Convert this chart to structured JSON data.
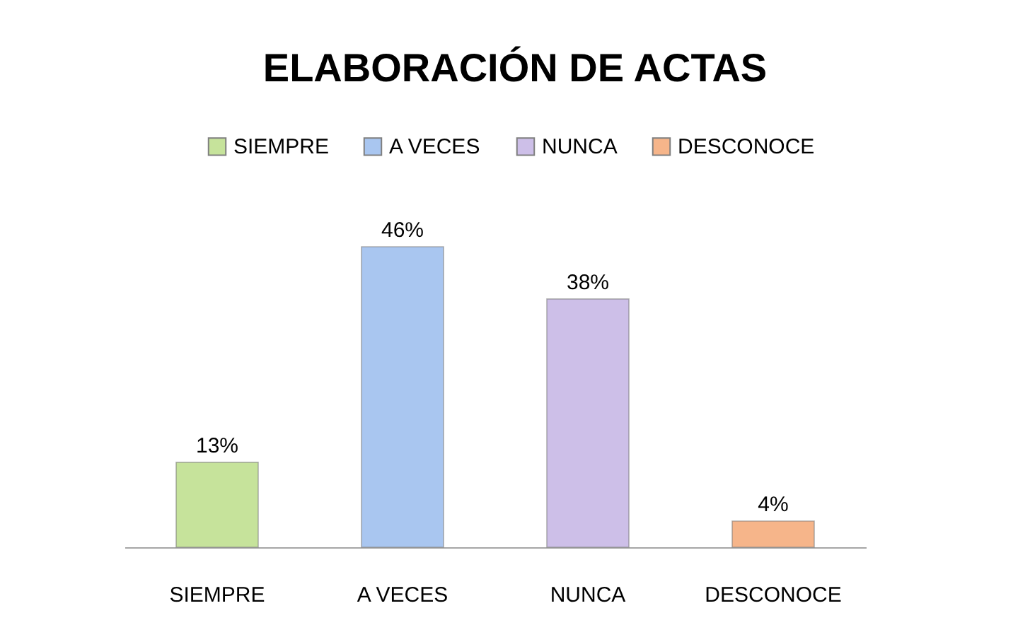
{
  "chart_data": {
    "type": "bar",
    "title": "ELABORACIÓN DE ACTAS",
    "categories": [
      "SIEMPRE",
      "A VECES",
      "NUNCA",
      "DESCONOCE"
    ],
    "series": [
      {
        "name": "SIEMPRE",
        "color": "#c6e39b",
        "values": [
          13,
          null,
          null,
          null
        ],
        "value_labels": [
          "13%",
          null,
          null,
          null
        ]
      },
      {
        "name": "A VECES",
        "color": "#a9c6f0",
        "values": [
          null,
          46,
          null,
          null
        ],
        "value_labels": [
          null,
          "46%",
          null,
          null
        ]
      },
      {
        "name": "NUNCA",
        "color": "#cdbfe8",
        "values": [
          null,
          null,
          38,
          null
        ],
        "value_labels": [
          null,
          null,
          "38%",
          null
        ]
      },
      {
        "name": "DESCONOCE",
        "color": "#f6b58a",
        "values": [
          null,
          null,
          null,
          4
        ],
        "value_labels": [
          null,
          null,
          null,
          "4%"
        ]
      }
    ],
    "legend": "top",
    "grid": false,
    "tick_labels": "x"
  }
}
